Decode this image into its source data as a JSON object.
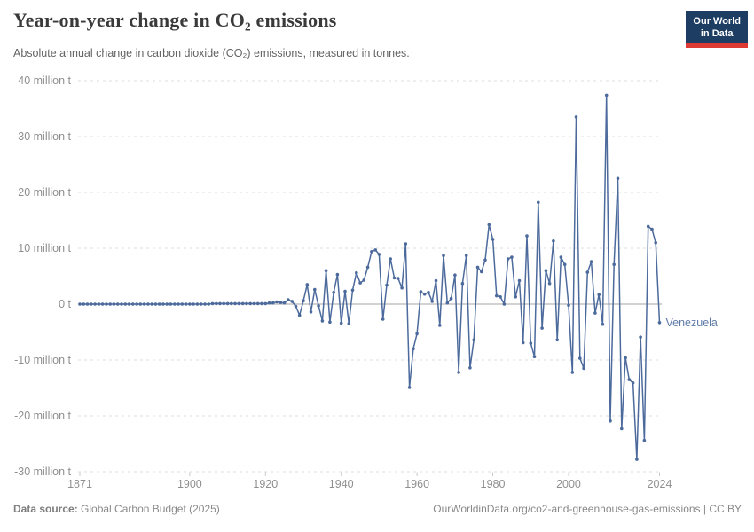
{
  "header": {
    "title": "Year-on-year change in CO₂ emissions",
    "subtitle": "Absolute annual change in carbon dioxide (CO₂) emissions, measured in tonnes.",
    "logo_line1": "Our World",
    "logo_line2": "in Data"
  },
  "chart_data": {
    "type": "line",
    "title": "Year-on-year change in CO₂ emissions",
    "entity": "Venezuela",
    "unit": "million tonnes",
    "x_start_year": 1871,
    "x_end_year": 2024,
    "xlim": [
      1871,
      2024
    ],
    "ylim": [
      -30,
      40
    ],
    "grid": "horizontal-dashed",
    "legend_position": "end-of-line-label",
    "xticks": [
      1871,
      1900,
      1920,
      1940,
      1960,
      1980,
      2000,
      2024
    ],
    "yticks": [
      {
        "value": 40,
        "label": "40 million t"
      },
      {
        "value": 30,
        "label": "30 million t"
      },
      {
        "value": 20,
        "label": "20 million t"
      },
      {
        "value": 10,
        "label": "10 million t"
      },
      {
        "value": 0,
        "label": "0 t"
      },
      {
        "value": -10,
        "label": "-10 million t"
      },
      {
        "value": -20,
        "label": "-20 million t"
      },
      {
        "value": -30,
        "label": "-30 million t"
      }
    ],
    "values": [
      0,
      0,
      0,
      0,
      0,
      0,
      0,
      0,
      0,
      0,
      0,
      0,
      0,
      0,
      0,
      0,
      0,
      0,
      0,
      0,
      0,
      0,
      0,
      0,
      0,
      0,
      0,
      0,
      0,
      0,
      0,
      0,
      0,
      0,
      0,
      0.1,
      0.1,
      0.1,
      0.1,
      0.1,
      0.1,
      0.1,
      0.1,
      0.1,
      0.1,
      0.1,
      0.1,
      0.1,
      0.1,
      0.1,
      0.2,
      0.2,
      0.4,
      0.3,
      0.2,
      0.8,
      0.5,
      -0.4,
      -2.0,
      0.6,
      3.5,
      -1.4,
      2.6,
      -0.3,
      -3.0,
      6.0,
      -3.2,
      2.1,
      5.3,
      -3.4,
      2.3,
      -3.5,
      2.5,
      5.6,
      3.8,
      4.3,
      6.6,
      9.4,
      9.7,
      8.9,
      -2.7,
      3.4,
      8.1,
      4.7,
      4.6,
      2.9,
      10.8,
      -14.9,
      -8.0,
      -5.3,
      2.2,
      1.8,
      2.1,
      0.5,
      4.2,
      -3.8,
      8.7,
      0.2,
      1.0,
      5.2,
      -12.2,
      3.7,
      8.7,
      -11.4,
      -6.4,
      6.6,
      5.8,
      7.9,
      14.2,
      11.6,
      1.5,
      1.3,
      0.0,
      8.1,
      8.4,
      1.3,
      4.2,
      -6.9,
      12.2,
      -7.0,
      -9.4,
      18.2,
      -4.3,
      6.0,
      3.7,
      11.3,
      -6.4,
      8.4,
      7.1,
      -0.2,
      -12.2,
      33.5,
      -9.7,
      -11.5,
      5.7,
      7.6,
      -1.6,
      1.7,
      -3.6,
      37.4,
      -20.9,
      7.1,
      22.5,
      -22.3,
      -9.6,
      -13.5,
      -14.1,
      -27.8,
      -5.9,
      -24.4,
      13.9,
      13.4,
      11.0,
      -3.3
    ],
    "colors": {
      "line": "#4C6A9C",
      "entity_label": "#5e7ba8",
      "grid": "#dedede",
      "zero_line": "#a6a6a6",
      "axis_text": "#8f8f8f",
      "tick_mark": "#c8c8c8"
    }
  },
  "footer": {
    "datasource_label": "Data source:",
    "datasource_value": " Global Carbon Budget (2025)",
    "license_text": "OurWorldinData.org/co2-and-greenhouse-gas-emissions | CC BY"
  }
}
